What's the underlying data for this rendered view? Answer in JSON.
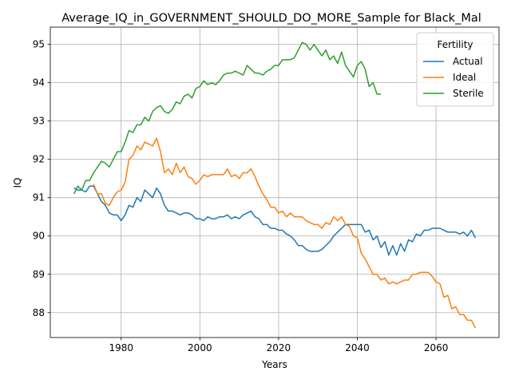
{
  "chart_data": {
    "type": "line",
    "title": "Average_IQ_in_GOVERNMENT_SHOULD_DO_MORE_Sample for Black_Mal",
    "xlabel": "Years",
    "ylabel": "IQ",
    "xlim": [
      1962,
      2076
    ],
    "ylim": [
      87.35,
      95.45
    ],
    "xticks": [
      1980,
      2000,
      2020,
      2040,
      2060
    ],
    "yticks": [
      88,
      89,
      90,
      91,
      92,
      93,
      94,
      95
    ],
    "grid": true,
    "legend": {
      "title": "Fertility",
      "placement": "top-right"
    },
    "series": [
      {
        "name": "Actual",
        "color": "#1f77b4",
        "x": [
          1968,
          1969,
          1970,
          1971,
          1972,
          1973,
          1974,
          1975,
          1976,
          1977,
          1978,
          1979,
          1980,
          1981,
          1982,
          1983,
          1984,
          1985,
          1986,
          1987,
          1988,
          1989,
          1990,
          1991,
          1992,
          1993,
          1994,
          1995,
          1996,
          1997,
          1998,
          1999,
          2000,
          2001,
          2002,
          2003,
          2004,
          2005,
          2006,
          2007,
          2008,
          2009,
          2010,
          2011,
          2012,
          2013,
          2014,
          2015,
          2016,
          2017,
          2018,
          2019,
          2020,
          2021,
          2022,
          2023,
          2024,
          2025,
          2026,
          2027,
          2028,
          2029,
          2030,
          2031,
          2032,
          2033,
          2034,
          2035,
          2036,
          2037,
          2038,
          2039,
          2040,
          2041,
          2042,
          2043,
          2044,
          2045,
          2046,
          2047,
          2048,
          2049,
          2050,
          2051,
          2052,
          2053,
          2054,
          2055,
          2056,
          2057,
          2058,
          2059,
          2060,
          2061,
          2062,
          2063,
          2064,
          2065,
          2066,
          2067,
          2068,
          2069,
          2070
        ],
        "y": [
          91.25,
          91.2,
          91.2,
          91.15,
          91.3,
          91.3,
          91.1,
          90.9,
          90.8,
          90.6,
          90.55,
          90.55,
          90.4,
          90.55,
          90.8,
          90.75,
          91.0,
          90.9,
          91.2,
          91.1,
          91.0,
          91.25,
          91.1,
          90.8,
          90.65,
          90.65,
          90.6,
          90.55,
          90.6,
          90.6,
          90.55,
          90.45,
          90.45,
          90.4,
          90.5,
          90.45,
          90.45,
          90.5,
          90.5,
          90.55,
          90.45,
          90.5,
          90.45,
          90.55,
          90.6,
          90.65,
          90.5,
          90.45,
          90.3,
          90.3,
          90.2,
          90.2,
          90.15,
          90.15,
          90.05,
          90.0,
          89.9,
          89.75,
          89.75,
          89.65,
          89.6,
          89.6,
          89.6,
          89.65,
          89.75,
          89.85,
          90.0,
          90.1,
          90.2,
          90.3,
          90.3,
          90.3,
          90.3,
          90.3,
          90.1,
          90.15,
          89.9,
          90.0,
          89.7,
          89.85,
          89.5,
          89.75,
          89.5,
          89.8,
          89.6,
          89.9,
          89.85,
          90.05,
          90.0,
          90.15,
          90.15,
          90.2,
          90.2,
          90.2,
          90.15,
          90.1,
          90.1,
          90.1,
          90.05,
          90.1,
          90.0,
          90.15,
          89.95
        ]
      },
      {
        "name": "Ideal",
        "color": "#ff7f0e",
        "x": [
          1973,
          1974,
          1975,
          1976,
          1977,
          1978,
          1979,
          1980,
          1981,
          1982,
          1983,
          1984,
          1985,
          1986,
          1987,
          1988,
          1989,
          1990,
          1991,
          1992,
          1993,
          1994,
          1995,
          1996,
          1997,
          1998,
          1999,
          2000,
          2001,
          2002,
          2003,
          2004,
          2005,
          2006,
          2007,
          2008,
          2009,
          2010,
          2011,
          2012,
          2013,
          2014,
          2015,
          2016,
          2017,
          2018,
          2019,
          2020,
          2021,
          2022,
          2023,
          2024,
          2025,
          2026,
          2027,
          2028,
          2029,
          2030,
          2031,
          2032,
          2033,
          2034,
          2035,
          2036,
          2037,
          2038,
          2039,
          2040,
          2041,
          2042,
          2043,
          2044,
          2045,
          2046,
          2047,
          2048,
          2049,
          2050,
          2051,
          2052,
          2053,
          2054,
          2055,
          2056,
          2057,
          2058,
          2059,
          2060,
          2061,
          2062,
          2063,
          2064,
          2065,
          2066,
          2067,
          2068,
          2069,
          2070
        ],
        "y": [
          91.35,
          91.1,
          91.1,
          90.85,
          90.8,
          91.0,
          91.15,
          91.2,
          91.4,
          92.0,
          92.1,
          92.35,
          92.25,
          92.45,
          92.4,
          92.35,
          92.55,
          92.2,
          91.65,
          91.75,
          91.6,
          91.9,
          91.65,
          91.8,
          91.55,
          91.5,
          91.35,
          91.45,
          91.6,
          91.55,
          91.6,
          91.6,
          91.6,
          91.6,
          91.75,
          91.55,
          91.6,
          91.5,
          91.65,
          91.65,
          91.75,
          91.55,
          91.3,
          91.1,
          90.95,
          90.75,
          90.75,
          90.6,
          90.65,
          90.5,
          90.6,
          90.5,
          90.5,
          90.5,
          90.4,
          90.35,
          90.3,
          90.3,
          90.2,
          90.35,
          90.3,
          90.5,
          90.4,
          90.5,
          90.3,
          90.25,
          90.0,
          89.95,
          89.55,
          89.4,
          89.2,
          89.0,
          89.0,
          88.85,
          88.9,
          88.75,
          88.8,
          88.75,
          88.8,
          88.85,
          88.85,
          89.0,
          89.0,
          89.05,
          89.05,
          89.05,
          88.95,
          88.8,
          88.75,
          88.4,
          88.45,
          88.1,
          88.15,
          87.95,
          87.95,
          87.8,
          87.8,
          87.6
        ]
      },
      {
        "name": "Sterile",
        "color": "#2ca02c",
        "x": [
          1968,
          1969,
          1970,
          1971,
          1972,
          1973,
          1974,
          1975,
          1976,
          1977,
          1978,
          1979,
          1980,
          1981,
          1982,
          1983,
          1984,
          1985,
          1986,
          1987,
          1988,
          1989,
          1990,
          1991,
          1992,
          1993,
          1994,
          1995,
          1996,
          1997,
          1998,
          1999,
          2000,
          2001,
          2002,
          2003,
          2004,
          2005,
          2006,
          2007,
          2008,
          2009,
          2010,
          2011,
          2012,
          2013,
          2014,
          2015,
          2016,
          2017,
          2018,
          2019,
          2020,
          2021,
          2022,
          2023,
          2024,
          2025,
          2026,
          2027,
          2028,
          2029,
          2030,
          2031,
          2032,
          2033,
          2034,
          2035,
          2036,
          2037,
          2038,
          2039,
          2040,
          2041,
          2042,
          2043,
          2044,
          2045,
          2046
        ],
        "y": [
          91.1,
          91.3,
          91.2,
          91.45,
          91.45,
          91.65,
          91.8,
          91.95,
          91.9,
          91.8,
          92.0,
          92.2,
          92.2,
          92.45,
          92.75,
          92.7,
          92.9,
          92.9,
          93.1,
          93.0,
          93.25,
          93.35,
          93.4,
          93.25,
          93.2,
          93.3,
          93.5,
          93.45,
          93.65,
          93.7,
          93.6,
          93.85,
          93.9,
          94.05,
          93.95,
          94.0,
          93.95,
          94.05,
          94.2,
          94.25,
          94.25,
          94.3,
          94.25,
          94.2,
          94.45,
          94.35,
          94.25,
          94.25,
          94.2,
          94.3,
          94.35,
          94.45,
          94.45,
          94.6,
          94.6,
          94.6,
          94.65,
          94.85,
          95.05,
          95.0,
          94.85,
          95.0,
          94.85,
          94.7,
          94.85,
          94.6,
          94.7,
          94.5,
          94.8,
          94.45,
          94.3,
          94.15,
          94.45,
          94.55,
          94.35,
          93.9,
          94.0,
          93.7,
          93.7
        ]
      }
    ]
  }
}
